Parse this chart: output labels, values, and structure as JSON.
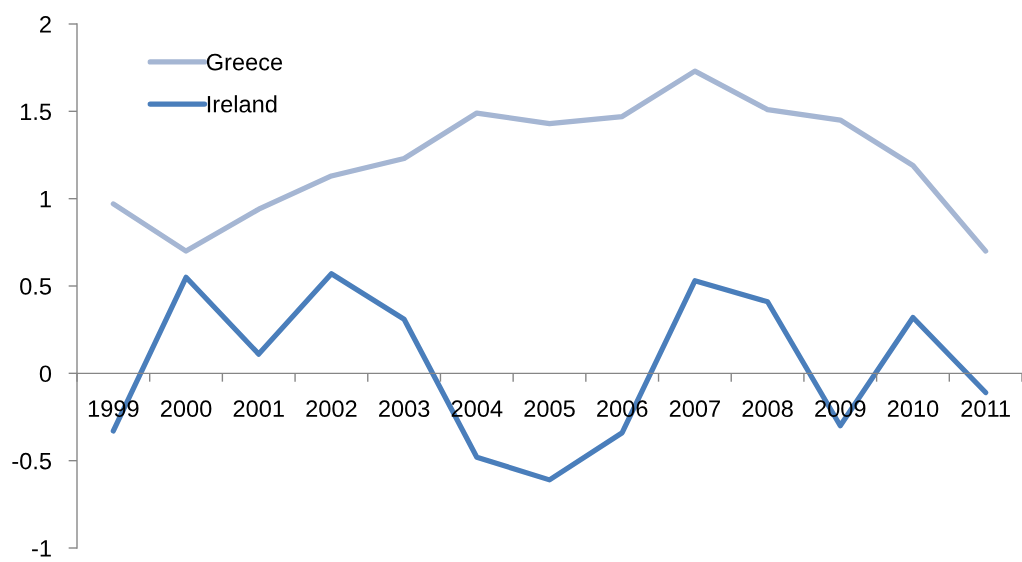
{
  "chart_data": {
    "type": "line",
    "categories": [
      "1999",
      "2000",
      "2001",
      "2002",
      "2003",
      "2004",
      "2005",
      "2006",
      "2007",
      "2008",
      "2009",
      "2010",
      "2011"
    ],
    "series": [
      {
        "name": "Greece",
        "color": "#a5b6d3",
        "values": [
          0.97,
          0.7,
          0.94,
          1.13,
          1.23,
          1.49,
          1.43,
          1.47,
          1.73,
          1.51,
          1.45,
          1.19,
          0.7
        ]
      },
      {
        "name": "Ireland",
        "color": "#4a7ebb",
        "values": [
          -0.33,
          0.55,
          0.11,
          0.57,
          0.31,
          -0.48,
          -0.61,
          -0.34,
          0.53,
          0.41,
          -0.3,
          0.32,
          -0.11
        ]
      }
    ],
    "ylim": [
      -1,
      2
    ],
    "yticks": [
      -1,
      -0.5,
      0,
      0.5,
      1,
      1.5,
      2
    ],
    "legend": "top left"
  }
}
